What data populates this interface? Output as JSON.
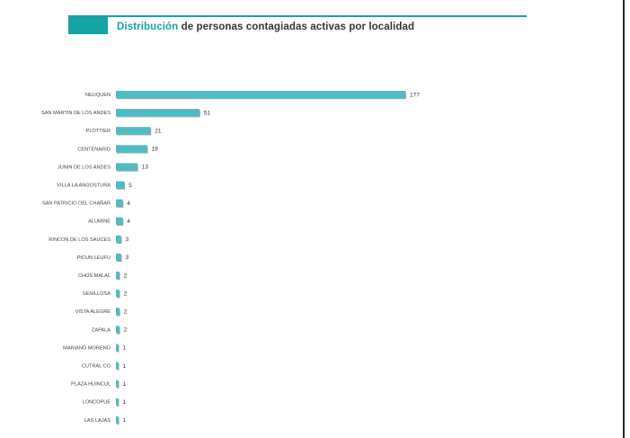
{
  "header": {
    "title_accent": "Distribución",
    "title_rest": " de personas contagiadas activas por localidad"
  },
  "colors": {
    "accent": "#16a3a3",
    "bar": "#4dbcc4",
    "bar_shadow": "#9fa4a6",
    "border": "#2a2a2a"
  },
  "chart_data": {
    "type": "bar",
    "orientation": "horizontal",
    "title": "Distribución de personas contagiadas activas por localidad",
    "categories": [
      "NEUQUEN",
      "SAN MARTIN DE LOS ANDES",
      "PLOTTIER",
      "CENTENARIO",
      "JUNIN DE LOS ANDES",
      "VILLA LA ANGOSTURA",
      "SAN PATRICIO DEL CHAÑAR",
      "ALUMINE",
      "RINCON DE LOS SAUCES",
      "PICUN LEUFU",
      "CHOS MALAL",
      "SENILLOSA",
      "VISTA ALEGRE",
      "ZAPALA",
      "MARIANO MORENO",
      "CUTRAL CO",
      "PLAZA HUINCUL",
      "LONCOPUE",
      "LAS LAJAS"
    ],
    "values": [
      177,
      51,
      21,
      19,
      13,
      5,
      4,
      4,
      3,
      3,
      2,
      2,
      2,
      2,
      1,
      1,
      1,
      1,
      1
    ],
    "data_labels": true,
    "grid": false,
    "legend": "none",
    "xlabel": "",
    "ylabel": ""
  }
}
